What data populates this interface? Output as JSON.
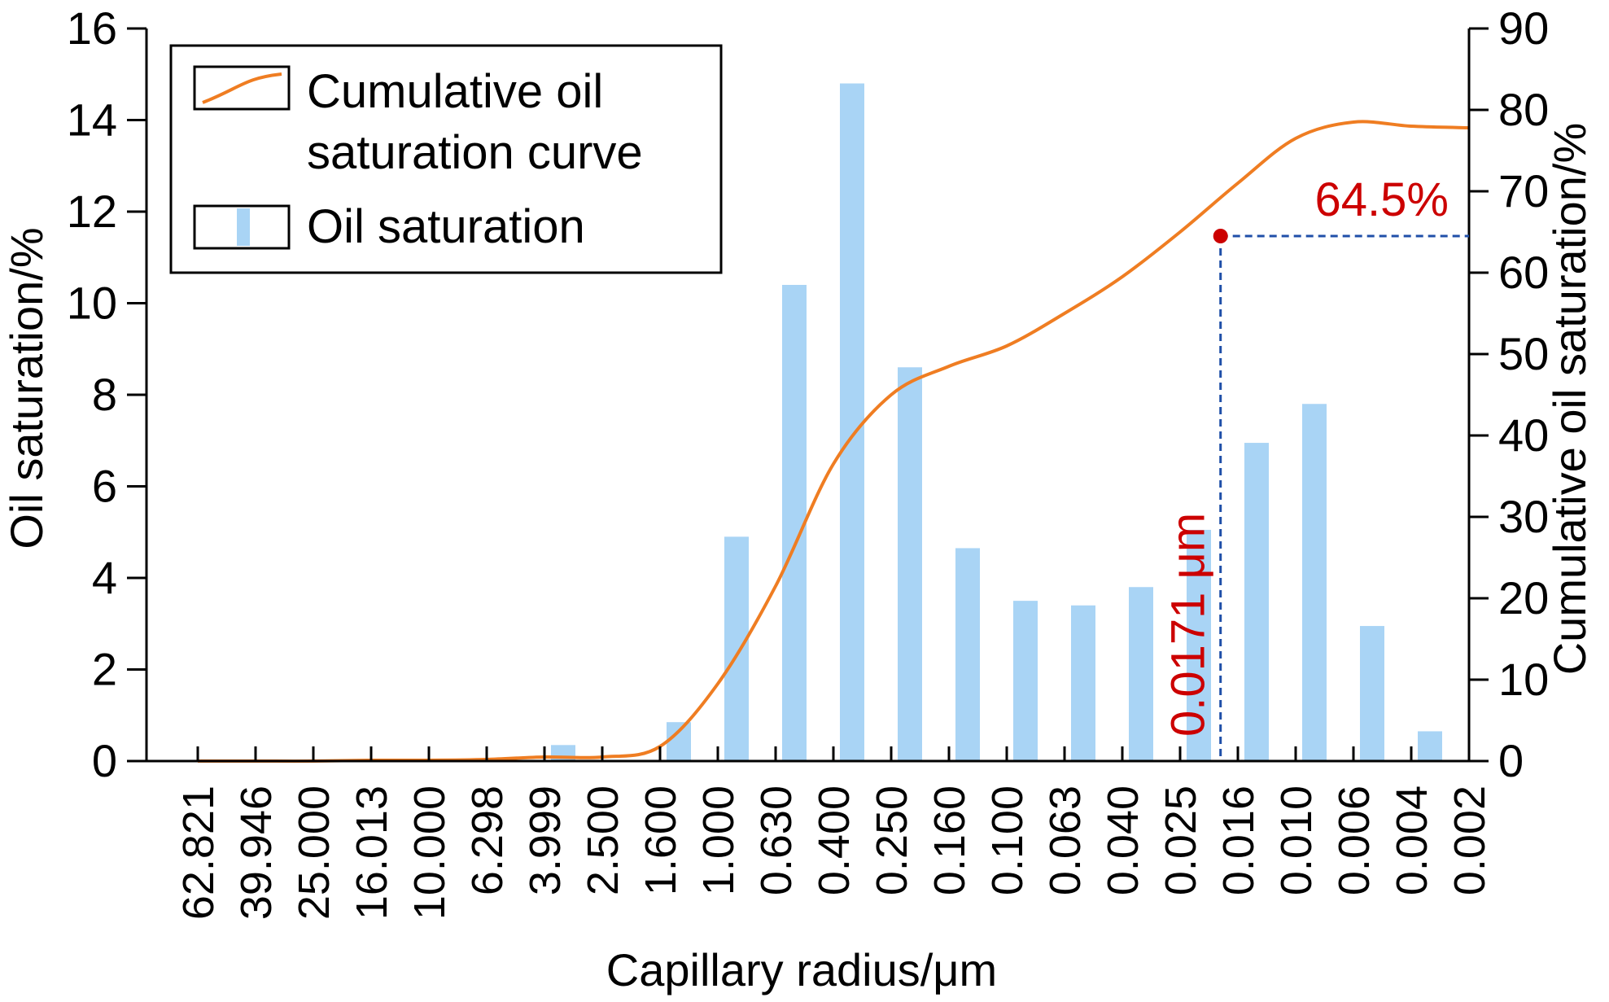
{
  "chart_data": {
    "type": "bar",
    "categories": [
      "62.821",
      "39.946",
      "25.000",
      "16.013",
      "10.000",
      "6.298",
      "3.999",
      "2.500",
      "1.600",
      "1.000",
      "0.630",
      "0.400",
      "0.250",
      "0.160",
      "0.100",
      "0.063",
      "0.040",
      "0.025",
      "0.016",
      "0.010",
      "0.006",
      "0.004",
      "0.002"
    ],
    "series": [
      {
        "name": "Oil saturation",
        "type": "bar",
        "axis": "left",
        "color": "#a9d4f5",
        "values": [
          0,
          0,
          0,
          0,
          0,
          0,
          0.35,
          0,
          0.85,
          4.9,
          10.4,
          14.8,
          8.6,
          4.65,
          3.5,
          3.4,
          3.8,
          5.05,
          6.95,
          7.8,
          2.95,
          0.65,
          0
        ]
      },
      {
        "name": "Cumulative oil saturation curve",
        "type": "line",
        "axis": "right",
        "color": "#ef7d22",
        "values": [
          0,
          0,
          0,
          0.1,
          0.1,
          0.2,
          0.5,
          0.5,
          1.8,
          9.5,
          21.5,
          36.5,
          45,
          48.5,
          51,
          55,
          59.5,
          65,
          71,
          76.5,
          78.5,
          78,
          77.8
        ]
      }
    ],
    "xlabel": "Capillary radius/μm",
    "ylabel": "Oil saturation/%",
    "y2label": "Cumulative oil saturation/%",
    "ylim": [
      0,
      16
    ],
    "yticks": [
      0,
      2,
      4,
      6,
      8,
      10,
      12,
      14,
      16
    ],
    "y2lim": [
      0,
      90
    ],
    "y2ticks": [
      0,
      10,
      20,
      30,
      40,
      50,
      60,
      70,
      80,
      90
    ],
    "legend": {
      "position": "top-left",
      "entries": [
        {
          "label_lines": [
            "Cumulative oil",
            "saturation curve"
          ],
          "kind": "line"
        },
        {
          "label_lines": [
            "Oil saturation"
          ],
          "kind": "bar"
        }
      ]
    },
    "annotations": {
      "point_x_index": 17.7,
      "point_y2": 64.5,
      "point_color": "#cc0000",
      "guide_color": "#1f4fa8",
      "y_label": "64.5%",
      "x_label": "0.0171 μm"
    },
    "grid": false
  }
}
